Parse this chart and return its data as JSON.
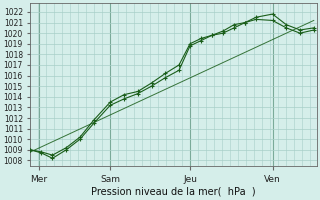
{
  "xlabel": "Pression niveau de la mer(  hPa  )",
  "ylim": [
    1007.5,
    1022.8
  ],
  "xlim": [
    0,
    10.4
  ],
  "yticks": [
    1008,
    1009,
    1010,
    1011,
    1012,
    1013,
    1014,
    1015,
    1016,
    1017,
    1018,
    1019,
    1020,
    1021,
    1022
  ],
  "bg_color": "#d5eeea",
  "grid_color": "#a8cfc8",
  "line_color": "#1a5e1a",
  "days": [
    "Mer",
    "Sam",
    "Jeu",
    "Ven"
  ],
  "day_positions": [
    0.3,
    2.9,
    5.8,
    8.8
  ],
  "line1_x": [
    0.0,
    0.4,
    0.8,
    1.3,
    1.8,
    2.3,
    2.9,
    3.4,
    3.9,
    4.4,
    4.9,
    5.4,
    5.8,
    6.2,
    6.6,
    7.0,
    7.4,
    7.8,
    8.2,
    8.8,
    9.3,
    9.8,
    10.3
  ],
  "line1_y": [
    1009.0,
    1008.7,
    1008.2,
    1009.0,
    1010.0,
    1011.5,
    1013.2,
    1013.8,
    1014.3,
    1015.0,
    1015.8,
    1016.5,
    1018.8,
    1019.3,
    1019.8,
    1020.2,
    1020.8,
    1021.0,
    1021.5,
    1021.8,
    1020.8,
    1020.3,
    1020.5
  ],
  "line2_x": [
    0.0,
    0.4,
    0.8,
    1.3,
    1.8,
    2.3,
    2.9,
    3.4,
    3.9,
    4.4,
    4.9,
    5.4,
    5.8,
    6.2,
    6.6,
    7.0,
    7.4,
    7.8,
    8.2,
    8.8,
    9.3,
    9.8,
    10.3
  ],
  "line2_y": [
    1009.0,
    1008.8,
    1008.5,
    1009.2,
    1010.2,
    1011.8,
    1013.5,
    1014.2,
    1014.5,
    1015.3,
    1016.2,
    1017.0,
    1019.0,
    1019.5,
    1019.8,
    1020.0,
    1020.5,
    1021.0,
    1021.3,
    1021.2,
    1020.5,
    1020.0,
    1020.3
  ],
  "trend_x": [
    0.0,
    10.3
  ],
  "trend_y": [
    1008.8,
    1021.2
  ]
}
